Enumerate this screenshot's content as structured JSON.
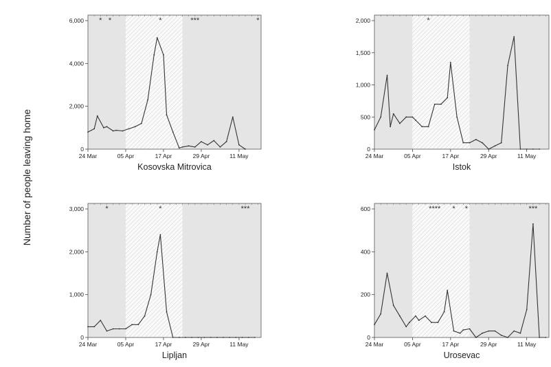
{
  "figure": {
    "ylabel": "Number of people leaving home"
  },
  "chart_data": [
    {
      "type": "line",
      "title": "Kosovska Mitrovica",
      "xlabel": "Kosovska Mitrovica",
      "ylabel": "Number of people leaving home",
      "xlim": [
        "1999-03-24",
        "1999-05-18"
      ],
      "ylim": [
        0,
        6000
      ],
      "yticks": [
        0,
        2000,
        4000,
        6000
      ],
      "ytick_labels": [
        "0",
        "2,000",
        "4,000",
        "6,000"
      ],
      "xticks": [
        "1999-03-24",
        "1999-04-05",
        "1999-04-17",
        "1999-04-29",
        "1999-05-11"
      ],
      "xtick_labels": [
        "24 Mar",
        "05 Apr",
        "17 Apr",
        "29 Apr",
        "11 May"
      ],
      "shaded_periods": [
        {
          "start": "1999-03-24",
          "end": "1999-04-05",
          "style": "grey"
        },
        {
          "start": "1999-04-05",
          "end": "1999-04-23",
          "style": "hatched"
        },
        {
          "start": "1999-04-23",
          "end": "1999-05-18",
          "style": "grey"
        }
      ],
      "asterisks": [
        {
          "x": "1999-03-28",
          "label": "*"
        },
        {
          "x": "1999-03-31",
          "label": "*"
        },
        {
          "x": "1999-04-16",
          "label": "*"
        },
        {
          "x": "1999-04-27",
          "label": "***"
        },
        {
          "x": "1999-05-17",
          "label": "*"
        }
      ],
      "x": [
        "1999-03-24",
        "1999-03-26",
        "1999-03-27",
        "1999-03-29",
        "1999-03-30",
        "1999-04-01",
        "1999-04-02",
        "1999-04-04",
        "1999-04-06",
        "1999-04-08",
        "1999-04-10",
        "1999-04-12",
        "1999-04-14",
        "1999-04-15",
        "1999-04-17",
        "1999-04-18",
        "1999-04-20",
        "1999-04-22",
        "1999-04-23",
        "1999-04-25",
        "1999-04-27",
        "1999-04-29",
        "1999-05-01",
        "1999-05-03",
        "1999-05-05",
        "1999-05-07",
        "1999-05-09",
        "1999-05-11",
        "1999-05-13"
      ],
      "series": [
        {
          "values": [
            800,
            950,
            1550,
            1000,
            1050,
            850,
            880,
            850,
            950,
            1050,
            1200,
            2300,
            4400,
            5200,
            4400,
            1600,
            800,
            50,
            100,
            150,
            100,
            350,
            200,
            400,
            100,
            350,
            1500,
            200,
            0
          ]
        }
      ]
    },
    {
      "type": "line",
      "title": "Istok",
      "xlabel": "Istok",
      "ylabel": "Number of people leaving home",
      "xlim": [
        "1999-03-24",
        "1999-05-18"
      ],
      "ylim": [
        0,
        2000
      ],
      "yticks": [
        0,
        500,
        1000,
        1500,
        2000
      ],
      "ytick_labels": [
        "0",
        "500",
        "1,000",
        "1,500",
        "2,000"
      ],
      "xticks": [
        "1999-03-24",
        "1999-04-05",
        "1999-04-17",
        "1999-04-29",
        "1999-05-11"
      ],
      "xtick_labels": [
        "24 Mar",
        "05 Apr",
        "17 Apr",
        "29 Apr",
        "11 May"
      ],
      "shaded_periods": [
        {
          "start": "1999-03-24",
          "end": "1999-04-05",
          "style": "grey"
        },
        {
          "start": "1999-04-05",
          "end": "1999-04-23",
          "style": "hatched"
        },
        {
          "start": "1999-04-23",
          "end": "1999-05-18",
          "style": "grey"
        }
      ],
      "asterisks": [
        {
          "x": "1999-04-10",
          "label": "*"
        }
      ],
      "x": [
        "1999-03-24",
        "1999-03-26",
        "1999-03-28",
        "1999-03-29",
        "1999-03-30",
        "1999-04-01",
        "1999-04-03",
        "1999-04-05",
        "1999-04-06",
        "1999-04-08",
        "1999-04-10",
        "1999-04-12",
        "1999-04-14",
        "1999-04-16",
        "1999-04-17",
        "1999-04-19",
        "1999-04-21",
        "1999-04-23",
        "1999-04-25",
        "1999-04-27",
        "1999-04-29",
        "1999-05-01",
        "1999-05-03",
        "1999-05-05",
        "1999-05-07",
        "1999-05-09",
        "1999-05-11",
        "1999-05-13",
        "1999-05-15"
      ],
      "series": [
        {
          "values": [
            300,
            500,
            1150,
            350,
            550,
            400,
            500,
            500,
            450,
            350,
            350,
            700,
            700,
            800,
            1350,
            500,
            100,
            100,
            150,
            100,
            0,
            50,
            100,
            1300,
            1750,
            0,
            0,
            0,
            0
          ]
        }
      ]
    },
    {
      "type": "line",
      "title": "Lipljan",
      "xlabel": "Lipljan",
      "ylabel": "Number of people leaving home",
      "xlim": [
        "1999-03-24",
        "1999-05-18"
      ],
      "ylim": [
        0,
        3000
      ],
      "yticks": [
        0,
        1000,
        2000,
        3000
      ],
      "ytick_labels": [
        "0",
        "1,000",
        "2,000",
        "3,000"
      ],
      "xticks": [
        "1999-03-24",
        "1999-04-05",
        "1999-04-17",
        "1999-04-29",
        "1999-05-11"
      ],
      "xtick_labels": [
        "24 Mar",
        "05 Apr",
        "17 Apr",
        "29 Apr",
        "11 May"
      ],
      "shaded_periods": [
        {
          "start": "1999-03-24",
          "end": "1999-04-05",
          "style": "grey"
        },
        {
          "start": "1999-04-05",
          "end": "1999-04-23",
          "style": "hatched"
        },
        {
          "start": "1999-04-23",
          "end": "1999-05-18",
          "style": "grey"
        }
      ],
      "asterisks": [
        {
          "x": "1999-03-30",
          "label": "*"
        },
        {
          "x": "1999-04-16",
          "label": "*"
        },
        {
          "x": "1999-05-13",
          "label": "***"
        }
      ],
      "x": [
        "1999-03-24",
        "1999-03-26",
        "1999-03-28",
        "1999-03-30",
        "1999-04-01",
        "1999-04-03",
        "1999-04-05",
        "1999-04-07",
        "1999-04-09",
        "1999-04-11",
        "1999-04-13",
        "1999-04-15",
        "1999-04-16",
        "1999-04-18",
        "1999-04-20",
        "1999-04-22",
        "1999-04-24",
        "1999-04-26",
        "1999-04-28",
        "1999-04-30",
        "1999-05-02",
        "1999-05-04",
        "1999-05-06",
        "1999-05-08",
        "1999-05-10",
        "1999-05-12",
        "1999-05-14",
        "1999-05-16"
      ],
      "series": [
        {
          "values": [
            250,
            250,
            400,
            150,
            200,
            200,
            200,
            300,
            300,
            500,
            1000,
            2000,
            2400,
            600,
            0,
            0,
            0,
            0,
            0,
            0,
            0,
            0,
            0,
            0,
            0,
            0,
            0,
            0
          ]
        }
      ]
    },
    {
      "type": "line",
      "title": "Urosevac",
      "xlabel": "Urosevac",
      "ylabel": "Number of people leaving home",
      "xlim": [
        "1999-03-24",
        "1999-05-18"
      ],
      "ylim": [
        0,
        600
      ],
      "yticks": [
        0,
        200,
        400,
        600
      ],
      "ytick_labels": [
        "0",
        "200",
        "400",
        "600"
      ],
      "xticks": [
        "1999-03-24",
        "1999-04-05",
        "1999-04-17",
        "1999-04-29",
        "1999-05-11"
      ],
      "xtick_labels": [
        "24 Mar",
        "05 Apr",
        "17 Apr",
        "29 Apr",
        "11 May"
      ],
      "shaded_periods": [
        {
          "start": "1999-03-24",
          "end": "1999-04-05",
          "style": "grey"
        },
        {
          "start": "1999-04-05",
          "end": "1999-04-23",
          "style": "hatched"
        },
        {
          "start": "1999-04-23",
          "end": "1999-05-18",
          "style": "grey"
        }
      ],
      "asterisks": [
        {
          "x": "1999-04-12",
          "label": "****"
        },
        {
          "x": "1999-04-18",
          "label": "*"
        },
        {
          "x": "1999-04-22",
          "label": "*"
        },
        {
          "x": "1999-05-13",
          "label": "***"
        }
      ],
      "x": [
        "1999-03-24",
        "1999-03-26",
        "1999-03-28",
        "1999-03-30",
        "1999-04-01",
        "1999-04-03",
        "1999-04-04",
        "1999-04-06",
        "1999-04-07",
        "1999-04-09",
        "1999-04-11",
        "1999-04-13",
        "1999-04-15",
        "1999-04-16",
        "1999-04-18",
        "1999-04-20",
        "1999-04-21",
        "1999-04-23",
        "1999-04-25",
        "1999-04-27",
        "1999-04-29",
        "1999-05-01",
        "1999-05-03",
        "1999-05-05",
        "1999-05-07",
        "1999-05-09",
        "1999-05-11",
        "1999-05-13",
        "1999-05-15",
        "1999-05-17"
      ],
      "series": [
        {
          "values": [
            60,
            110,
            300,
            150,
            100,
            50,
            70,
            100,
            80,
            100,
            70,
            70,
            120,
            220,
            30,
            20,
            35,
            40,
            0,
            20,
            30,
            30,
            10,
            0,
            30,
            20,
            130,
            530,
            0,
            0
          ]
        }
      ]
    }
  ]
}
